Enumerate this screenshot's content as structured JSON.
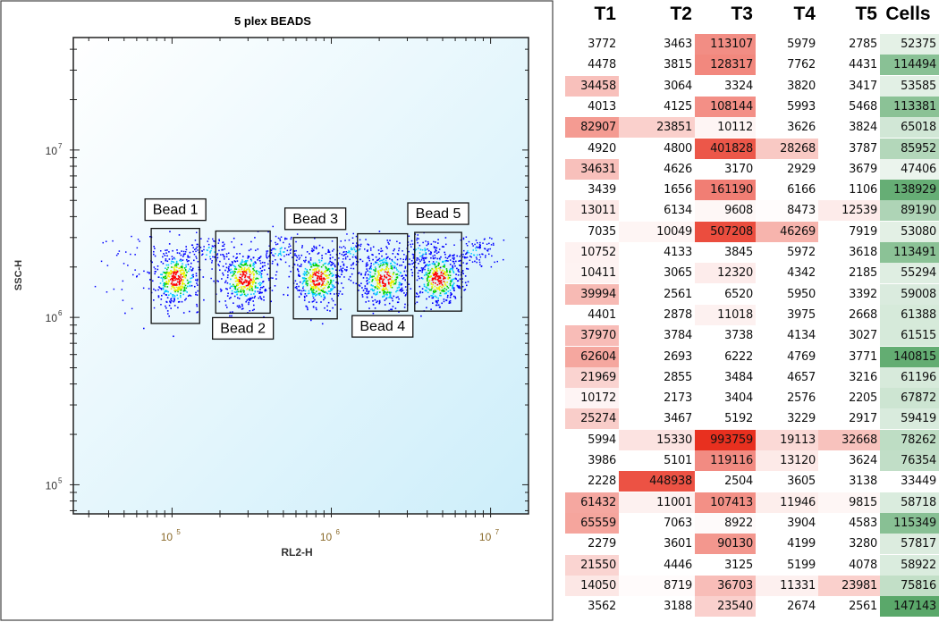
{
  "chart_data": [
    {
      "type": "scatter",
      "title": "5 plex BEADS",
      "xlabel": "RL2-H",
      "ylabel": "SSC-H",
      "xscale": "log",
      "yscale": "log",
      "xlim": [
        24000,
        17300000
      ],
      "ylim": [
        67000,
        47000000
      ],
      "x_ticks": [
        {
          "value": 100000,
          "base": "10",
          "exp": "5"
        },
        {
          "value": 1000000,
          "base": "10",
          "exp": "6"
        },
        {
          "value": 10000000,
          "base": "10",
          "exp": "7"
        }
      ],
      "y_ticks": [
        {
          "value": 100000,
          "base": "10",
          "exp": "5"
        },
        {
          "value": 1000000,
          "base": "10",
          "exp": "6"
        },
        {
          "value": 10000000,
          "base": "10",
          "exp": "7"
        }
      ],
      "density_colors": [
        "#0000ff",
        "#00c8ff",
        "#00d000",
        "#f0f000",
        "#ff0000"
      ],
      "background_colors": [
        "#ffffff",
        "#cdeefa"
      ],
      "clusters": [
        {
          "center": [
            105000,
            1720000
          ]
        },
        {
          "center": [
            285000,
            1720000
          ]
        },
        {
          "center": [
            823000,
            1720000
          ]
        },
        {
          "center": [
            2150000,
            1720000
          ]
        },
        {
          "center": [
            4670000,
            1720000
          ]
        }
      ],
      "gates": [
        {
          "label": "Bead 1",
          "x": [
            74000,
            149000
          ],
          "y": [
            920000,
            3400000
          ],
          "label_pos": "above"
        },
        {
          "label": "Bead 2",
          "x": [
            188000,
            413000
          ],
          "y": [
            1060000,
            3280000
          ],
          "label_pos": "below"
        },
        {
          "label": "Bead 3",
          "x": [
            578000,
            1090000
          ],
          "y": [
            980000,
            3000000
          ],
          "label_pos": "above"
        },
        {
          "label": "Bead 4",
          "x": [
            1460000,
            3010000
          ],
          "y": [
            1090000,
            3160000
          ],
          "label_pos": "below"
        },
        {
          "label": "Bead 5",
          "x": [
            3340000,
            6580000
          ],
          "y": [
            1090000,
            3220000
          ],
          "label_pos": "above"
        }
      ]
    },
    {
      "type": "table",
      "columns": [
        "T1",
        "T2",
        "T3",
        "T4",
        "T5",
        "Cells"
      ],
      "color_scales": {
        "T": [
          "#ffffff",
          "#e8301f"
        ],
        "Cells": [
          "#ffffff",
          "#5aa86a"
        ]
      },
      "rows": [
        [
          3772,
          3463,
          113107,
          5979,
          2785,
          52375
        ],
        [
          4478,
          3815,
          128317,
          7762,
          4431,
          114494
        ],
        [
          34458,
          3064,
          3324,
          3820,
          3417,
          53585
        ],
        [
          4013,
          4125,
          108144,
          5993,
          5468,
          113381
        ],
        [
          82907,
          23851,
          10112,
          3626,
          3824,
          65018
        ],
        [
          4920,
          4800,
          401828,
          28268,
          3787,
          85952
        ],
        [
          34631,
          4626,
          3170,
          2929,
          3679,
          47406
        ],
        [
          3439,
          1656,
          161190,
          6166,
          1106,
          138929
        ],
        [
          13011,
          6134,
          9608,
          8473,
          12539,
          89190
        ],
        [
          7035,
          10049,
          507208,
          46269,
          7919,
          53080
        ],
        [
          10752,
          4133,
          3845,
          5972,
          3618,
          113491
        ],
        [
          10411,
          3065,
          12320,
          4342,
          2185,
          55294
        ],
        [
          39994,
          2561,
          6520,
          5950,
          3392,
          59008
        ],
        [
          4401,
          2878,
          11018,
          3975,
          2668,
          61388
        ],
        [
          37970,
          3784,
          3738,
          4134,
          3027,
          61515
        ],
        [
          62604,
          2693,
          6222,
          4769,
          3771,
          140815
        ],
        [
          21969,
          2855,
          3484,
          4657,
          3216,
          61196
        ],
        [
          10172,
          2173,
          3404,
          2576,
          2205,
          67872
        ],
        [
          25274,
          3467,
          5192,
          3229,
          2917,
          59419
        ],
        [
          5994,
          15330,
          993759,
          19113,
          32668,
          78262
        ],
        [
          3986,
          5101,
          119116,
          13120,
          3624,
          76354
        ],
        [
          2228,
          448938,
          2504,
          3605,
          3138,
          33449
        ],
        [
          61432,
          11001,
          107413,
          11946,
          9815,
          58718
        ],
        [
          65559,
          7063,
          8922,
          3904,
          4583,
          115349
        ],
        [
          2279,
          3601,
          90130,
          4199,
          3280,
          57817
        ],
        [
          21550,
          4446,
          3125,
          5199,
          4078,
          58922
        ],
        [
          14050,
          8719,
          36703,
          11331,
          23981,
          75816
        ],
        [
          3562,
          3188,
          23540,
          2674,
          2561,
          147143
        ]
      ]
    }
  ]
}
